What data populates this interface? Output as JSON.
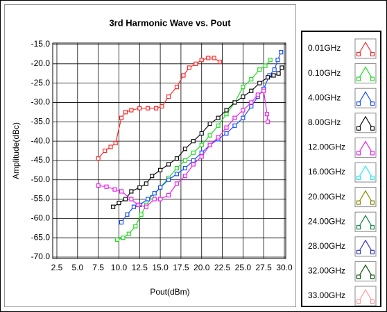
{
  "chart_data": {
    "type": "line",
    "title": "3rd Harmonic Wave vs. Pout",
    "x_label": "Pout(dBm)",
    "y_label": "Amplitude(dBc)",
    "xlim": [
      2.5,
      30.0
    ],
    "xticks": [
      2.5,
      {
        "value": 5,
        "label": "5.0"
      },
      7.5,
      {
        "value": 10,
        "label": "10.0"
      },
      12.5,
      {
        "value": 15,
        "label": "15.0"
      },
      17.5,
      {
        "value": 20,
        "label": "20.0"
      },
      22.5,
      {
        "value": 25,
        "label": "25.0"
      },
      27.5,
      {
        "value": 30,
        "label": "30.0"
      }
    ],
    "ylim": [
      -70,
      -15
    ],
    "yticks": [
      {
        "value": -15,
        "label": "-15.0"
      },
      {
        "value": -20,
        "label": "-20.0"
      },
      {
        "value": -25,
        "label": "-25.0"
      },
      {
        "value": -30,
        "label": "-30.0"
      },
      {
        "value": -35,
        "label": "-35.0"
      },
      {
        "value": -40,
        "label": "-40.0"
      },
      {
        "value": -45,
        "label": "-45.0"
      },
      {
        "value": -50,
        "label": "-50.0"
      },
      {
        "value": -55,
        "label": "-55.0"
      },
      {
        "value": -60,
        "label": "-60.0"
      },
      {
        "value": -65,
        "label": "-65.0"
      },
      {
        "value": -70,
        "label": "-70.0"
      }
    ],
    "grid": true,
    "series": [
      {
        "name": "0.01GHz",
        "color": "#ff2a2a",
        "x": [
          7.5,
          8.3,
          9.0,
          9.6,
          10.3,
          10.8,
          11.5,
          12.5,
          13.5,
          14.5,
          15.2,
          16,
          17,
          17.8,
          18.5,
          19.3,
          20,
          20.8,
          21.5,
          22.2
        ],
        "values": [
          -44.5,
          -42.5,
          -41.5,
          -40.5,
          -34,
          -32.5,
          -32,
          -31.5,
          -31.5,
          -31.5,
          -31,
          -28.5,
          -26,
          -23,
          -21,
          -20,
          -19,
          -18.5,
          -18.5,
          -19.5
        ]
      },
      {
        "name": "0.10GHz",
        "color": "#22dd22",
        "x": [
          9.8,
          10.5,
          11.2,
          12,
          12.7,
          13.3,
          14,
          15,
          16,
          17,
          18,
          19,
          20,
          21,
          22,
          23,
          24,
          25,
          26,
          27,
          27.7,
          28.3
        ],
        "values": [
          -65.5,
          -65,
          -64,
          -62,
          -59,
          -56.5,
          -54.5,
          -52,
          -49.5,
          -47,
          -45,
          -43,
          -41,
          -38.5,
          -36,
          -33,
          -30,
          -26,
          -24,
          -21.5,
          -20.5,
          -19
        ]
      },
      {
        "name": "4.00GHz",
        "color": "#1a4fff",
        "x": [
          10.3,
          11,
          11.8,
          12.5,
          13.5,
          14.3,
          15,
          16,
          17,
          18,
          19,
          20,
          21,
          22,
          23,
          24,
          25,
          26,
          26.8,
          27.5,
          28.2,
          28.8,
          29.2,
          29.6
        ],
        "values": [
          -61,
          -59,
          -57,
          -56.5,
          -55,
          -53.5,
          -52,
          -50,
          -48.5,
          -47,
          -45,
          -43,
          -41,
          -39.5,
          -38,
          -36,
          -34,
          -31,
          -28.5,
          -26.5,
          -23,
          -21.5,
          -19,
          -17
        ]
      },
      {
        "name": "8.00GHz",
        "color": "#111111",
        "x": [
          9.3,
          10,
          10.8,
          11.5,
          12.5,
          13.3,
          14,
          15,
          16,
          17,
          18,
          19,
          20,
          21,
          22,
          23,
          24,
          25,
          26,
          27,
          28,
          28.7,
          29.3,
          29.7
        ],
        "values": [
          -57,
          -56,
          -55,
          -53,
          -52,
          -51,
          -49,
          -47.5,
          -46,
          -44.5,
          -42,
          -40,
          -38,
          -35.5,
          -34,
          -32,
          -30,
          -28.5,
          -27,
          -25,
          -23.5,
          -23,
          -22.5,
          -21
        ]
      },
      {
        "name": "12.00GHz",
        "color": "#ee22ee",
        "x": [
          7.5,
          8.5,
          9.5,
          10.3,
          11.5,
          12.3,
          13.3,
          14.3,
          15,
          16,
          17,
          18,
          19,
          20,
          21,
          22,
          23,
          24,
          25,
          26,
          26.8,
          27.5,
          27.9,
          28
        ],
        "values": [
          -51.5,
          -51.8,
          -52.5,
          -53,
          -55,
          -56.5,
          -57,
          -55,
          -55,
          -54,
          -51,
          -49,
          -46,
          -44,
          -41,
          -39,
          -36.5,
          -34,
          -32,
          -30,
          -28,
          -27,
          -33,
          -35
        ]
      },
      {
        "name": "16.00GHz",
        "color": "#22eeee",
        "x": [],
        "values": []
      },
      {
        "name": "20.00GHz",
        "color": "#8a8a00",
        "x": [],
        "values": []
      },
      {
        "name": "24.00GHz",
        "color": "#118844",
        "x": [],
        "values": []
      },
      {
        "name": "28.00GHz",
        "color": "#3333cc",
        "x": [],
        "values": []
      },
      {
        "name": "32.00GHz",
        "color": "#115511",
        "x": [],
        "values": []
      },
      {
        "name": "33.00GHz",
        "color": "#ff9999",
        "x": [],
        "values": []
      }
    ]
  }
}
